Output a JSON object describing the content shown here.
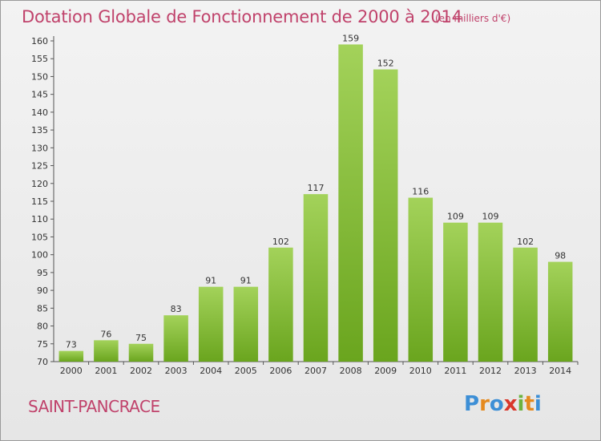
{
  "title": "Dotation Globale de Fonctionnement de 2000 à 2014",
  "unit_label": "(en milliers d'€)",
  "place_name": "SAINT-PANCRACE",
  "logo": {
    "letters": [
      "P",
      "r",
      "o",
      "x",
      "i",
      "t",
      "i"
    ],
    "colors": [
      "#3d8fd6",
      "#e58a1f",
      "#3d8fd6",
      "#d9372b",
      "#6db33f",
      "#e58a1f",
      "#3d8fd6"
    ]
  },
  "colors": {
    "accent": "#c0426b",
    "bar_top": "#a3d25a",
    "bar_bottom": "#6aa51e"
  },
  "chart_data": {
    "type": "bar",
    "title": "Dotation Globale de Fonctionnement de 2000 à 2014",
    "xlabel": "",
    "ylabel": "(en milliers d'€)",
    "categories": [
      "2000",
      "2001",
      "2002",
      "2003",
      "2004",
      "2005",
      "2006",
      "2007",
      "2008",
      "2009",
      "2010",
      "2011",
      "2012",
      "2013",
      "2014"
    ],
    "values": [
      73,
      76,
      75,
      83,
      91,
      91,
      102,
      117,
      159,
      152,
      116,
      109,
      109,
      102,
      98
    ],
    "ylim": [
      70,
      160
    ],
    "yticks": [
      70,
      75,
      80,
      85,
      90,
      95,
      100,
      105,
      110,
      115,
      120,
      125,
      130,
      135,
      140,
      145,
      150,
      155,
      160
    ],
    "grid": false
  }
}
